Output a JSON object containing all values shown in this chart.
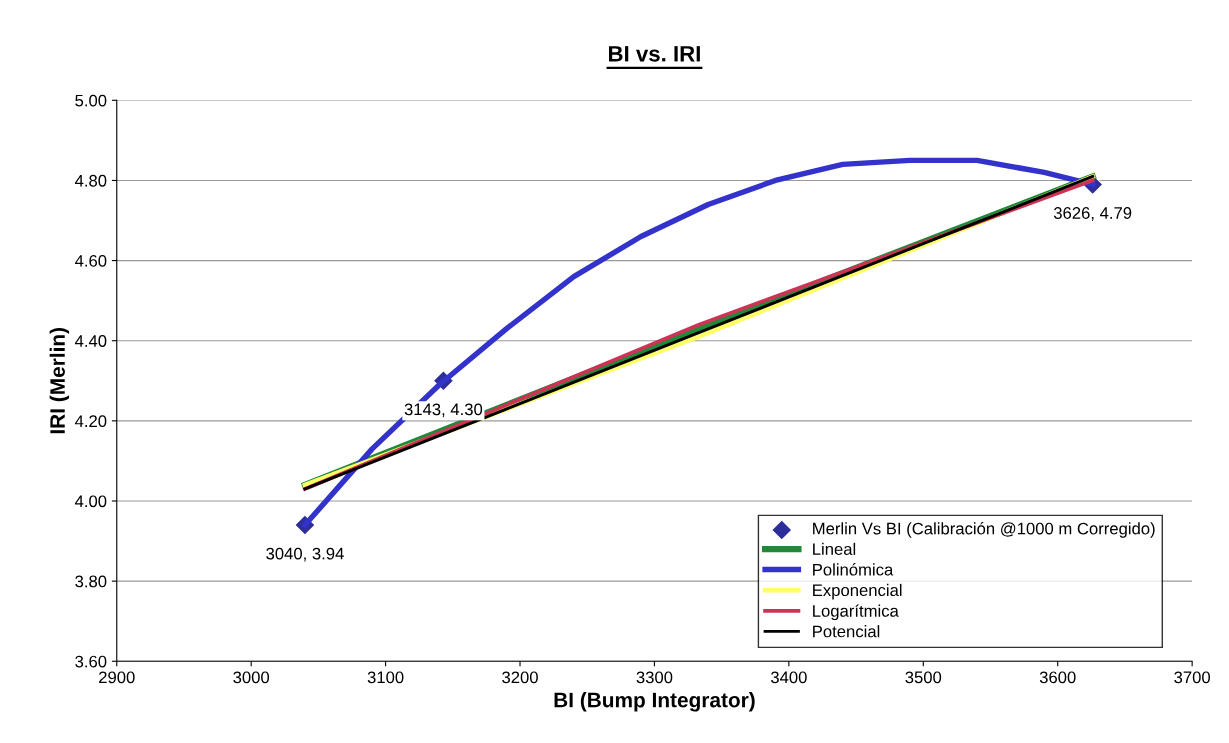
{
  "chart_data": {
    "type": "line",
    "title": "BI vs. IRI",
    "xlabel": "BI (Bump Integrator)",
    "ylabel": "IRI (Merlin)",
    "xlim": [
      2900,
      3700
    ],
    "xticks": [
      2900,
      3000,
      3100,
      3200,
      3300,
      3400,
      3500,
      3600,
      3700
    ],
    "ylim": [
      3.6,
      5.0
    ],
    "yticks": [
      {
        "value": 3.6,
        "label": "3.60"
      },
      {
        "value": 3.8,
        "label": "3.80"
      },
      {
        "value": 4.0,
        "label": "4.00"
      },
      {
        "value": 4.2,
        "label": "4.20"
      },
      {
        "value": 4.4,
        "label": "4.40"
      },
      {
        "value": 4.6,
        "label": "4.60"
      },
      {
        "value": 4.8,
        "label": "4.80"
      },
      {
        "value": 5.0,
        "label": "5.00"
      }
    ],
    "grid": "y",
    "legend": "bottom right",
    "series": [
      {
        "name": "Merlin Vs BI (Calibración @1000 m Corregido)",
        "type": "scatter",
        "marker": "diamond",
        "color": "#2e2e9a",
        "x": [
          3040,
          3143,
          3626
        ],
        "values": [
          3.94,
          4.3,
          4.79
        ],
        "value_labels": [
          "3040, 3.94",
          "3143, 4.30",
          "3626, 4.79"
        ]
      },
      {
        "name": "Lineal",
        "color": "#1f8a3a",
        "x": [
          3040,
          3333,
          3626
        ],
        "values": [
          4.04,
          4.43,
          4.81
        ]
      },
      {
        "name": "Polinómica",
        "color": "#3333cc",
        "x": [
          3040,
          3090,
          3140,
          3190,
          3240,
          3290,
          3340,
          3390,
          3440,
          3490,
          3540,
          3590,
          3626
        ],
        "values": [
          3.94,
          4.13,
          4.29,
          4.43,
          4.56,
          4.66,
          4.74,
          4.8,
          4.84,
          4.85,
          4.85,
          4.82,
          4.79
        ]
      },
      {
        "name": "Exponencial",
        "color": "#ffff66",
        "x": [
          3040,
          3333,
          3626
        ],
        "values": [
          4.04,
          4.41,
          4.81
        ]
      },
      {
        "name": "Logarítmica",
        "color": "#cc3355",
        "x": [
          3040,
          3333,
          3626
        ],
        "values": [
          4.03,
          4.44,
          4.8
        ]
      },
      {
        "name": "Potencial",
        "color": "#000000",
        "x": [
          3040,
          3333,
          3626
        ],
        "values": [
          4.03,
          4.42,
          4.81
        ]
      }
    ]
  }
}
